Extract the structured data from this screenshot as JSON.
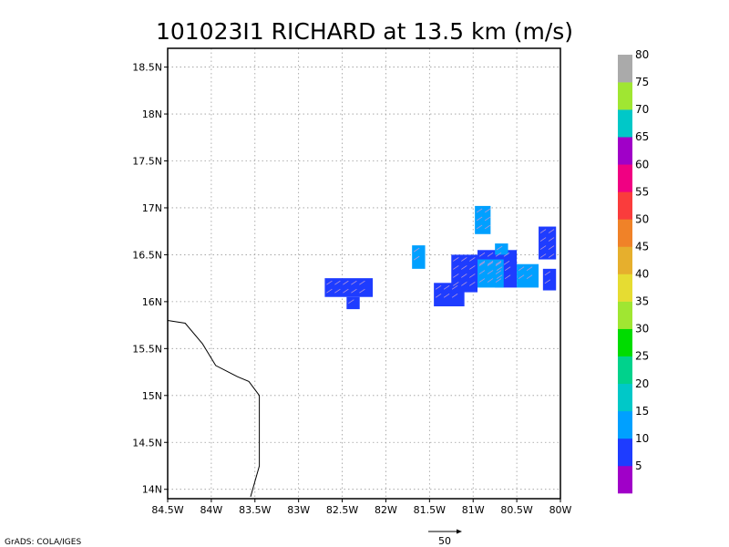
{
  "chart_data": {
    "type": "heatmap",
    "title": "101023I1 RICHARD at 13.5 km (m/s)",
    "xlabel": "",
    "ylabel": "",
    "xlim": [
      -84.5,
      -80
    ],
    "ylim": [
      13.9,
      18.7
    ],
    "x_ticks": [
      {
        "value": -84.5,
        "label": "84.5W"
      },
      {
        "value": -84,
        "label": "84W"
      },
      {
        "value": -83.5,
        "label": "83.5W"
      },
      {
        "value": -83,
        "label": "83W"
      },
      {
        "value": -82.5,
        "label": "82.5W"
      },
      {
        "value": -82,
        "label": "82W"
      },
      {
        "value": -81.5,
        "label": "81.5W"
      },
      {
        "value": -81,
        "label": "81W"
      },
      {
        "value": -80.5,
        "label": "80.5W"
      },
      {
        "value": -80,
        "label": "80W"
      }
    ],
    "y_ticks": [
      {
        "value": 14,
        "label": "14N"
      },
      {
        "value": 14.5,
        "label": "14.5N"
      },
      {
        "value": 15,
        "label": "15N"
      },
      {
        "value": 15.5,
        "label": "15.5N"
      },
      {
        "value": 16,
        "label": "16N"
      },
      {
        "value": 16.5,
        "label": "16.5N"
      },
      {
        "value": 17,
        "label": "17N"
      },
      {
        "value": 17.5,
        "label": "17.5N"
      },
      {
        "value": 18,
        "label": "18N"
      },
      {
        "value": 18.5,
        "label": "18.5N"
      }
    ],
    "grid": true,
    "coastline": [
      [
        -84.5,
        15.8
      ],
      [
        -84.3,
        15.77
      ],
      [
        -84.1,
        15.55
      ],
      [
        -83.95,
        15.32
      ],
      [
        -83.7,
        15.2
      ],
      [
        -83.57,
        15.15
      ],
      [
        -83.45,
        15.0
      ],
      [
        -83.45,
        14.25
      ],
      [
        -83.55,
        13.92
      ]
    ],
    "cells": [
      {
        "lon0": -82.7,
        "lon1": -82.15,
        "lat0": 16.05,
        "lat1": 16.25,
        "value": 5
      },
      {
        "lon0": -82.45,
        "lon1": -82.3,
        "lat0": 15.92,
        "lat1": 16.05,
        "value": 5
      },
      {
        "lon0": -81.45,
        "lon1": -81.1,
        "lat0": 15.95,
        "lat1": 16.2,
        "value": 5
      },
      {
        "lon0": -81.25,
        "lon1": -80.95,
        "lat0": 16.1,
        "lat1": 16.5,
        "value": 5
      },
      {
        "lon0": -80.95,
        "lon1": -80.5,
        "lat0": 16.3,
        "lat1": 16.55,
        "value": 5
      },
      {
        "lon0": -80.25,
        "lon1": -80.05,
        "lat0": 16.45,
        "lat1": 16.8,
        "value": 5
      },
      {
        "lon0": -80.2,
        "lon1": -80.05,
        "lat0": 16.12,
        "lat1": 16.35,
        "value": 5
      },
      {
        "lon0": -80.75,
        "lon1": -80.5,
        "lat0": 16.15,
        "lat1": 16.4,
        "value": 5
      },
      {
        "lon0": -81.7,
        "lon1": -81.55,
        "lat0": 16.35,
        "lat1": 16.6,
        "value": 10
      },
      {
        "lon0": -80.98,
        "lon1": -80.8,
        "lat0": 16.72,
        "lat1": 17.02,
        "value": 10
      },
      {
        "lon0": -80.95,
        "lon1": -80.65,
        "lat0": 16.15,
        "lat1": 16.45,
        "value": 10
      },
      {
        "lon0": -80.5,
        "lon1": -80.25,
        "lat0": 16.15,
        "lat1": 16.4,
        "value": 10
      },
      {
        "lon0": -80.75,
        "lon1": -80.6,
        "lat0": 16.5,
        "lat1": 16.62,
        "value": 10
      }
    ],
    "colorbar": {
      "colors": [
        "#a000c8",
        "#1e3cff",
        "#00a0ff",
        "#00c8c8",
        "#00d28c",
        "#00dc00",
        "#a0e632",
        "#e6dc32",
        "#e6af2d",
        "#f08228",
        "#fa3c3c",
        "#f00082",
        "#a000c8",
        "#00c8c8",
        "#a0e632",
        "#aaaaaa"
      ],
      "labels": [
        "5",
        "10",
        "15",
        "20",
        "25",
        "30",
        "35",
        "40",
        "45",
        "50",
        "55",
        "60",
        "65",
        "70",
        "75",
        "80"
      ]
    },
    "reference_vector": {
      "value": "50"
    }
  },
  "footer": {
    "credit": "GrADS: COLA/IGES"
  }
}
